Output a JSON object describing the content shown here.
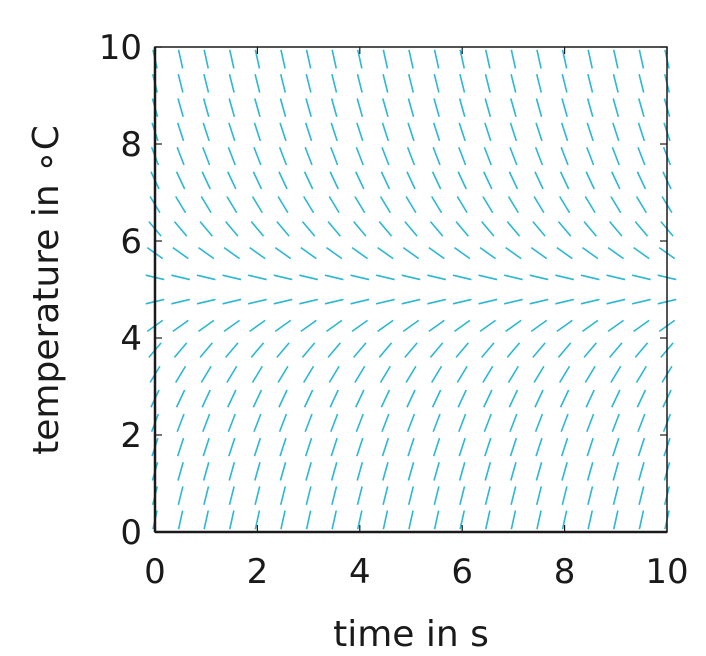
{
  "chart_data": {
    "type": "slope_field",
    "xlabel": "time in s",
    "ylabel": "temperature in ∘C",
    "xlim": [
      0,
      10
    ],
    "ylim": [
      0,
      10
    ],
    "xticks": [
      "0",
      "2",
      "4",
      "6",
      "8",
      "10"
    ],
    "yticks": [
      "0",
      "2",
      "4",
      "6",
      "8",
      "10"
    ],
    "field": {
      "equation": "dT/dt = k (5 - T)",
      "k": 1,
      "equilibrium": 5,
      "t_start": 0,
      "t_step": 0.5,
      "t_count": 21,
      "T_start": 0.25,
      "T_step": 0.5,
      "T_count": 20
    },
    "color": "#2bb8d0",
    "grid": false
  }
}
